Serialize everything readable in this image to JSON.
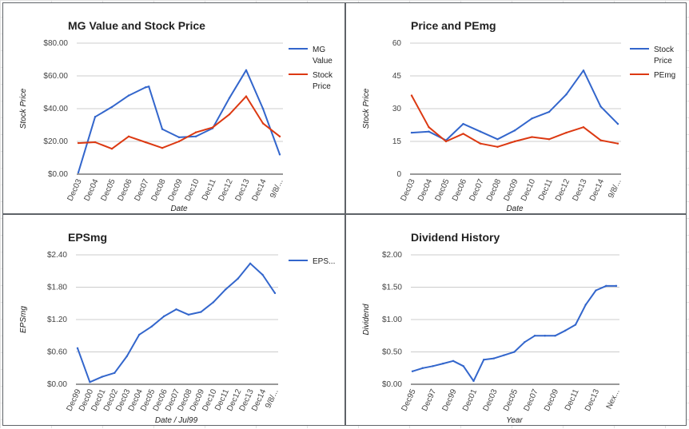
{
  "chart_data": [
    {
      "type": "line",
      "title": "MG Value and Stock Price",
      "xlabel": "Date",
      "ylabel": "Stock Price",
      "categories": [
        "Dec03",
        "Dec04",
        "Dec05",
        "Dec06",
        "Dec07",
        "Dec08",
        "Dec09",
        "Dec10",
        "Dec11",
        "Dec12",
        "Dec13",
        "Dec14",
        "9/8/..."
      ],
      "x_positions": [
        0,
        1,
        2,
        3,
        4,
        5,
        6,
        7,
        8,
        9,
        10,
        11,
        12
      ],
      "yticks": [
        "$0.00",
        "$20.00",
        "$40.00",
        "$60.00",
        "$80.00"
      ],
      "ylim": [
        0,
        80
      ],
      "grid": true,
      "legend_position": "right",
      "series": [
        {
          "name": "MG Value",
          "color": "#3366cc",
          "x": [
            0,
            1,
            2,
            3,
            4,
            4.2,
            5,
            6,
            7,
            8,
            9,
            10,
            11,
            12
          ],
          "values": [
            1,
            35,
            41,
            48,
            53,
            53.5,
            27.5,
            22.5,
            23,
            28,
            46.5,
            63.5,
            40,
            12
          ]
        },
        {
          "name": "Stock Price",
          "color": "#dc3912",
          "x": [
            0,
            1,
            2,
            3,
            4,
            5,
            6,
            7,
            8,
            9,
            10,
            11,
            12
          ],
          "values": [
            19,
            19.5,
            15.5,
            23,
            19.5,
            16,
            20,
            25.5,
            28.5,
            36.5,
            47.5,
            31,
            23
          ]
        }
      ]
    },
    {
      "type": "line",
      "title": "Price and PEmg",
      "xlabel": "Date",
      "ylabel": "Stock Price",
      "categories": [
        "Dec03",
        "Dec04",
        "Dec05",
        "Dec06",
        "Dec07",
        "Dec08",
        "Dec09",
        "Dec10",
        "Dec11",
        "Dec12",
        "Dec13",
        "Dec14",
        "9/8/..."
      ],
      "x_positions": [
        0,
        1,
        2,
        3,
        4,
        5,
        6,
        7,
        8,
        9,
        10,
        11,
        12
      ],
      "yticks": [
        "0",
        "15",
        "30",
        "45",
        "60"
      ],
      "ylim": [
        0,
        60
      ],
      "grid": true,
      "legend_position": "right",
      "series": [
        {
          "name": "Stock Price",
          "color": "#3366cc",
          "x": [
            0,
            1,
            2,
            3,
            4,
            5,
            6,
            7,
            8,
            9,
            10,
            11,
            12
          ],
          "values": [
            19,
            19.5,
            15.5,
            23,
            19.5,
            16,
            20,
            25.5,
            28.5,
            36.5,
            47.5,
            31,
            23
          ]
        },
        {
          "name": "PEmg",
          "color": "#dc3912",
          "x": [
            0,
            1,
            2,
            3,
            4,
            5,
            6,
            7,
            8,
            9,
            10,
            11,
            12
          ],
          "values": [
            36,
            21.5,
            15,
            18.5,
            14,
            12.5,
            15,
            17,
            16,
            19,
            21.5,
            15.5,
            14
          ]
        }
      ]
    },
    {
      "type": "line",
      "title": "EPSmg",
      "xlabel": "Date / Jul99",
      "ylabel": "EPSmg",
      "categories": [
        "Dec99",
        "Dec00",
        "Dec01",
        "Dec02",
        "Dec03",
        "Dec04",
        "Dec05",
        "Dec06",
        "Dec07",
        "Dec08",
        "Dec09",
        "Dec10",
        "Dec11",
        "Dec12",
        "Dec13",
        "Dec14",
        "9/8/..."
      ],
      "x_positions": [
        0,
        1,
        2,
        3,
        4,
        5,
        6,
        7,
        8,
        9,
        10,
        11,
        12,
        13,
        14,
        15,
        16
      ],
      "yticks": [
        "$0.00",
        "$0.60",
        "$1.20",
        "$1.80",
        "$2.40"
      ],
      "ylim": [
        0,
        2.4
      ],
      "grid": true,
      "legend_position": "right",
      "series": [
        {
          "name": "EPS...",
          "color": "#3366cc",
          "x": [
            0,
            1,
            2,
            3,
            4,
            5,
            6,
            7,
            8,
            9,
            10,
            11,
            12,
            13,
            14,
            15,
            16
          ],
          "values": [
            0.67,
            0.04,
            0.14,
            0.21,
            0.52,
            0.92,
            1.07,
            1.26,
            1.39,
            1.29,
            1.34,
            1.52,
            1.76,
            1.96,
            2.24,
            2.03,
            1.69
          ]
        }
      ]
    },
    {
      "type": "line",
      "title": "Dividend History",
      "xlabel": "Year",
      "ylabel": "Dividend",
      "categories": [
        "Dec95",
        "Dec97",
        "Dec99",
        "Dec01",
        "Dec03",
        "Dec05",
        "Dec07",
        "Dec09",
        "Dec11",
        "Dec13",
        "Nex..."
      ],
      "x_positions": [
        0,
        2,
        4,
        6,
        8,
        10,
        12,
        14,
        16,
        18,
        20
      ],
      "yticks": [
        "$0.00",
        "$0.50",
        "$1.00",
        "$1.50",
        "$2.00"
      ],
      "ylim": [
        0,
        2
      ],
      "grid": true,
      "legend_position": "none",
      "series": [
        {
          "name": "",
          "color": "#3366cc",
          "x": [
            0,
            1,
            2,
            3,
            4,
            5,
            6,
            7,
            8,
            9,
            10,
            11,
            12,
            13,
            14,
            15,
            16,
            17,
            18,
            19,
            20
          ],
          "values": [
            0.2,
            0.25,
            0.28,
            0.32,
            0.36,
            0.28,
            0.05,
            0.38,
            0.4,
            0.45,
            0.5,
            0.65,
            0.75,
            0.75,
            0.75,
            0.83,
            0.92,
            1.23,
            1.45,
            1.52,
            1.52
          ]
        }
      ]
    }
  ]
}
